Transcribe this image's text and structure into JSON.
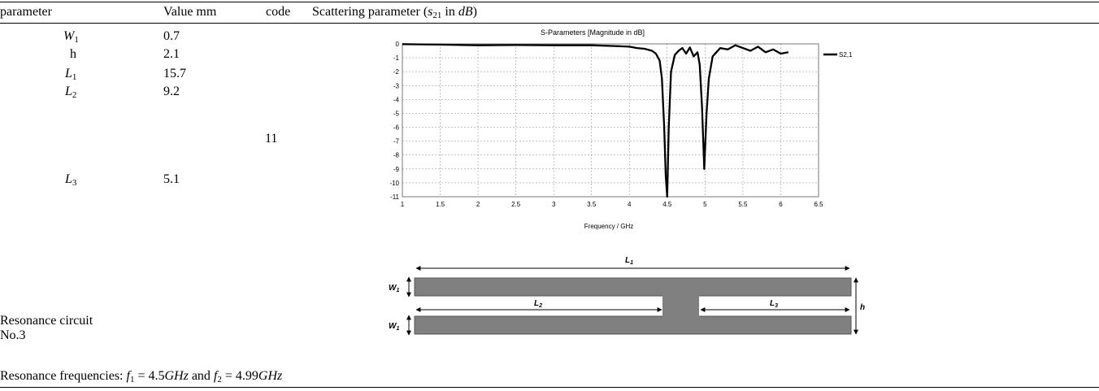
{
  "table": {
    "headers": [
      "parameter",
      "Value mm",
      "code"
    ],
    "scattering_header": {
      "pre": "Scattering parameter (",
      "sym": "s",
      "sub": "21",
      "mid": " in ",
      "unit": "dB",
      "post": ")"
    },
    "rows": [
      {
        "param": "W",
        "param_sub": "1",
        "value": "0.7"
      },
      {
        "param": "h",
        "param_sub": "",
        "value": "2.1"
      },
      {
        "param": "L",
        "param_sub": "1",
        "value": "15.7"
      },
      {
        "param": "L",
        "param_sub": "2",
        "value": "9.2"
      },
      {
        "param": "L",
        "param_sub": "3",
        "value": "5.1"
      }
    ],
    "code": "11",
    "circuit_label_line1": "Resonance circuit",
    "circuit_label_line2": "No.3",
    "resonance": {
      "pre": "Resonance frequencies: ",
      "f1_sym": "f",
      "f1_sub": "1",
      "f1_val": " = 4.5",
      "f1_unit": "GHz",
      "and": " and ",
      "f2_sym": "f",
      "f2_sub": "2",
      "f2_val": " = 4.99",
      "f2_unit": "GHz"
    }
  },
  "chart_data": {
    "type": "line",
    "title": "S-Parameters [Magnitude in dB]",
    "xlabel": "Frequency / GHz",
    "ylabel": "",
    "xlim": [
      1,
      6.5
    ],
    "ylim": [
      -11,
      0
    ],
    "xticks": [
      "1",
      "1.5",
      "2",
      "2.5",
      "3",
      "3.5",
      "4",
      "4.5",
      "5",
      "5.5",
      "6",
      "6.5"
    ],
    "yticks": [
      "0",
      "-1",
      "-2",
      "-3",
      "-4",
      "-5",
      "-6",
      "-7",
      "-8",
      "-9",
      "-10",
      "-11"
    ],
    "grid": true,
    "legend_position": "right",
    "series": [
      {
        "name": "S2,1",
        "x": [
          1.0,
          1.5,
          2.0,
          2.5,
          3.0,
          3.5,
          3.8,
          4.0,
          4.1,
          4.2,
          4.3,
          4.35,
          4.4,
          4.43,
          4.46,
          4.48,
          4.5,
          4.52,
          4.55,
          4.6,
          4.65,
          4.7,
          4.75,
          4.8,
          4.85,
          4.9,
          4.93,
          4.96,
          4.99,
          5.02,
          5.05,
          5.1,
          5.15,
          5.2,
          5.3,
          5.4,
          5.5,
          5.6,
          5.7,
          5.8,
          5.9,
          6.0,
          6.1
        ],
        "y": [
          -0.02,
          -0.05,
          -0.1,
          -0.08,
          -0.1,
          -0.1,
          -0.15,
          -0.2,
          -0.3,
          -0.35,
          -0.5,
          -0.7,
          -1.2,
          -2.5,
          -6.0,
          -9.5,
          -11.0,
          -6.0,
          -2.0,
          -0.8,
          -0.5,
          -0.3,
          -0.7,
          -0.25,
          -0.9,
          -0.6,
          -1.5,
          -4.5,
          -9.0,
          -5.0,
          -2.5,
          -0.9,
          -0.6,
          -0.3,
          -0.4,
          -0.1,
          -0.3,
          -0.5,
          -0.2,
          -0.6,
          -0.4,
          -0.7,
          -0.6
        ]
      }
    ]
  },
  "schematic": {
    "labels": {
      "length1": "L1",
      "length2": "L2",
      "length3": "L3",
      "width_top": "W1",
      "width_bottom": "W1",
      "height": "h"
    }
  },
  "colors": {
    "trace": "#000000",
    "strip": "#808080",
    "grid": "#9a9a9a"
  }
}
